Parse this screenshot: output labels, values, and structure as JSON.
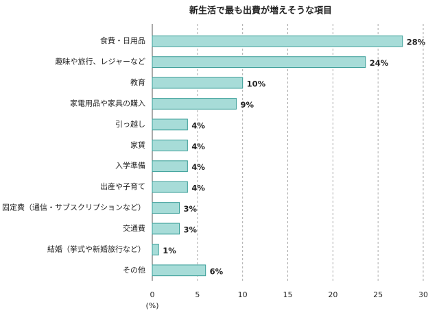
{
  "chart_data": {
    "type": "bar",
    "orientation": "horizontal",
    "title": "新生活で最も出費が増えそうな項目",
    "categories": [
      "食費・日用品",
      "趣味や旅行、レジャーなど",
      "教育",
      "家電用品や家具の購入",
      "引っ越し",
      "家賃",
      "入学準備",
      "出産や子育て",
      "固定費（通信・サブスクリプションなど）",
      "交通費",
      "結婚（挙式や新婚旅行など）",
      "その他"
    ],
    "values": [
      27.7,
      23.6,
      10.0,
      9.3,
      3.9,
      3.9,
      3.9,
      3.9,
      3.0,
      3.0,
      0.7,
      5.9
    ],
    "value_labels": [
      "28%",
      "24%",
      "10%",
      "9%",
      "4%",
      "4%",
      "4%",
      "4%",
      "3%",
      "3%",
      "1%",
      "6%"
    ],
    "xlim": [
      0,
      30
    ],
    "xticks": [
      0,
      5,
      10,
      15,
      20,
      25,
      30
    ],
    "x_label": "(%)",
    "grid": true,
    "color": "#a7dcd8",
    "edge_color": "#3a9e98"
  }
}
